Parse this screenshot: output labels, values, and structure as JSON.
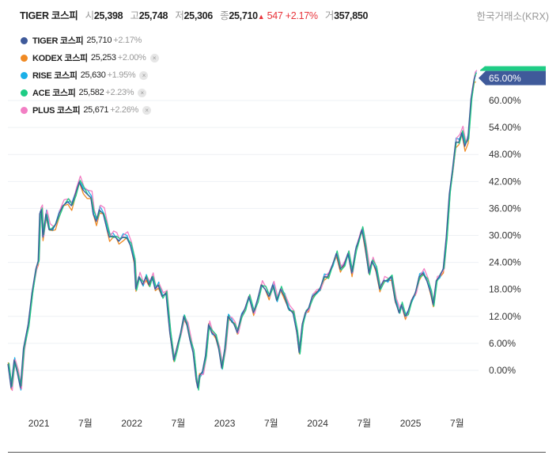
{
  "header": {
    "name": "TIGER 코스피",
    "open_label": "시",
    "open": "25,398",
    "high_label": "고",
    "high": "25,748",
    "low_label": "저",
    "low": "25,306",
    "close_label": "종",
    "close": "25,710",
    "change": "547",
    "change_pct": "+2.17%",
    "volume_label": "거",
    "volume": "357,850",
    "source": "한국거래소(KRX)"
  },
  "legend": [
    {
      "name": "TIGER 코스피",
      "price": "25,710",
      "change": "+2.17%",
      "color": "#3f5a9a",
      "removable": false
    },
    {
      "name": "KODEX 코스피",
      "price": "25,253",
      "change": "+2.00%",
      "color": "#f08a24",
      "removable": true
    },
    {
      "name": "RISE 코스피",
      "price": "25,630",
      "change": "+1.95%",
      "color": "#1ab0e8",
      "removable": true
    },
    {
      "name": "ACE 코스피",
      "price": "25,582",
      "change": "+2.23%",
      "color": "#1fcc85",
      "removable": true
    },
    {
      "name": "PLUS 코스피",
      "price": "25,671",
      "change": "+2.26%",
      "color": "#f27fc4",
      "removable": true
    }
  ],
  "remove_glyph": "×",
  "chart_data": {
    "type": "line",
    "x_unit": "months since 2020-09",
    "xticks": [
      {
        "t": 4,
        "label": "2021"
      },
      {
        "t": 10,
        "label": "7월"
      },
      {
        "t": 16,
        "label": "2022"
      },
      {
        "t": 22,
        "label": "7월"
      },
      {
        "t": 28,
        "label": "2023"
      },
      {
        "t": 34,
        "label": "7월"
      },
      {
        "t": 40,
        "label": "2024"
      },
      {
        "t": 46,
        "label": "7월"
      },
      {
        "t": 52,
        "label": "2025"
      },
      {
        "t": 58,
        "label": "7월"
      }
    ],
    "yticks": [
      "0.00%",
      "6.00%",
      "12.00%",
      "18.00%",
      "24.00%",
      "30.00%",
      "36.00%",
      "42.00%",
      "48.00%",
      "54.00%",
      "60.00%"
    ],
    "ytick_values": [
      0,
      6,
      12,
      18,
      24,
      30,
      36,
      42,
      48,
      54,
      60
    ],
    "current_label": "65.00%",
    "current_value": 65,
    "ylabel": "",
    "xlabel": "",
    "grid": true,
    "base_series": [
      [
        0,
        1.4
      ],
      [
        0.4,
        -3.9
      ],
      [
        0.8,
        2.3
      ],
      [
        1.2,
        -0.4
      ],
      [
        1.6,
        -3.9
      ],
      [
        2,
        4.9
      ],
      [
        2.6,
        10.2
      ],
      [
        3.1,
        17.2
      ],
      [
        3.6,
        22.5
      ],
      [
        3.9,
        24.3
      ],
      [
        4.1,
        34.8
      ],
      [
        4.3,
        35.7
      ],
      [
        4.5,
        29.6
      ],
      [
        4.9,
        34.8
      ],
      [
        5.3,
        31.3
      ],
      [
        5.7,
        31.3
      ],
      [
        6.1,
        32.2
      ],
      [
        6.6,
        34.8
      ],
      [
        7.1,
        36.6
      ],
      [
        7.7,
        37.5
      ],
      [
        8.2,
        36.6
      ],
      [
        8.7,
        39.2
      ],
      [
        9.2,
        41.9
      ],
      [
        9.7,
        40.1
      ],
      [
        10.2,
        39.2
      ],
      [
        10.7,
        38.4
      ],
      [
        11,
        34.8
      ],
      [
        11.4,
        33.1
      ],
      [
        11.8,
        35.7
      ],
      [
        12.3,
        34.8
      ],
      [
        12.8,
        31.3
      ],
      [
        13.1,
        29.6
      ],
      [
        13.5,
        29.9
      ],
      [
        13.9,
        29.6
      ],
      [
        14.3,
        28.7
      ],
      [
        14.8,
        29.6
      ],
      [
        15.3,
        29.6
      ],
      [
        15.8,
        27.8
      ],
      [
        16.3,
        24.3
      ],
      [
        16.5,
        18.1
      ],
      [
        16.9,
        20.8
      ],
      [
        17.4,
        19
      ],
      [
        17.8,
        20.8
      ],
      [
        18.2,
        19
      ],
      [
        18.6,
        20.8
      ],
      [
        19,
        18.1
      ],
      [
        19.4,
        19
      ],
      [
        19.9,
        16.4
      ],
      [
        20.4,
        17.2
      ],
      [
        20.9,
        8.4
      ],
      [
        21.4,
        2.3
      ],
      [
        21.8,
        4.9
      ],
      [
        22.3,
        8.4
      ],
      [
        22.7,
        12
      ],
      [
        23.1,
        10.2
      ],
      [
        23.5,
        6.7
      ],
      [
        23.9,
        4
      ],
      [
        24.3,
        -2.1
      ],
      [
        24.5,
        -3.9
      ],
      [
        24.7,
        -1.2
      ],
      [
        25.1,
        -0.4
      ],
      [
        25.5,
        3.2
      ],
      [
        25.9,
        10.2
      ],
      [
        26.3,
        8.4
      ],
      [
        26.8,
        7.6
      ],
      [
        27.2,
        4.9
      ],
      [
        27.6,
        0.5
      ],
      [
        28,
        4.9
      ],
      [
        28.4,
        12
      ],
      [
        28.8,
        11.1
      ],
      [
        29.2,
        10.2
      ],
      [
        29.6,
        8.4
      ],
      [
        30.1,
        12
      ],
      [
        30.6,
        13.7
      ],
      [
        31.1,
        16.4
      ],
      [
        31.7,
        12.8
      ],
      [
        32.2,
        15.5
      ],
      [
        32.7,
        19
      ],
      [
        33.2,
        18.1
      ],
      [
        33.7,
        16.4
      ],
      [
        34.2,
        19
      ],
      [
        34.7,
        15.5
      ],
      [
        35.2,
        18.1
      ],
      [
        35.7,
        16.4
      ],
      [
        36.2,
        13.7
      ],
      [
        36.8,
        12.8
      ],
      [
        37.3,
        8.4
      ],
      [
        37.6,
        4
      ],
      [
        38,
        10.2
      ],
      [
        38.4,
        12.8
      ],
      [
        38.8,
        13.7
      ],
      [
        39.3,
        16.4
      ],
      [
        39.8,
        17.2
      ],
      [
        40.3,
        18.1
      ],
      [
        40.8,
        20.8
      ],
      [
        41.3,
        20.8
      ],
      [
        41.9,
        23.4
      ],
      [
        42.4,
        26
      ],
      [
        42.9,
        22.5
      ],
      [
        43.4,
        23.4
      ],
      [
        43.9,
        26
      ],
      [
        44.4,
        21.6
      ],
      [
        44.9,
        26.9
      ],
      [
        45.4,
        29.6
      ],
      [
        45.7,
        31.3
      ],
      [
        46.1,
        27.8
      ],
      [
        46.6,
        21.6
      ],
      [
        47,
        24.3
      ],
      [
        47.5,
        22.5
      ],
      [
        48,
        18.1
      ],
      [
        48.5,
        19.9
      ],
      [
        49,
        19.9
      ],
      [
        49.5,
        20.8
      ],
      [
        50,
        15.5
      ],
      [
        50.5,
        12.8
      ],
      [
        50.8,
        14.6
      ],
      [
        51.3,
        12
      ],
      [
        51.6,
        12.8
      ],
      [
        52.1,
        15.5
      ],
      [
        52.6,
        17.2
      ],
      [
        53.1,
        20.8
      ],
      [
        53.6,
        21.6
      ],
      [
        54.1,
        19.9
      ],
      [
        54.6,
        17.2
      ],
      [
        54.9,
        14.6
      ],
      [
        55.3,
        19.9
      ],
      [
        55.7,
        20.8
      ],
      [
        56.2,
        22.5
      ],
      [
        56.6,
        29.6
      ],
      [
        57,
        39.2
      ],
      [
        57.4,
        44.5
      ],
      [
        57.8,
        50.7
      ],
      [
        58.2,
        50.7
      ],
      [
        58.6,
        52.8
      ],
      [
        59,
        49.8
      ],
      [
        59.4,
        51.6
      ],
      [
        59.8,
        60.4
      ],
      [
        60.2,
        64.8
      ],
      [
        60.4,
        65.6
      ]
    ]
  }
}
